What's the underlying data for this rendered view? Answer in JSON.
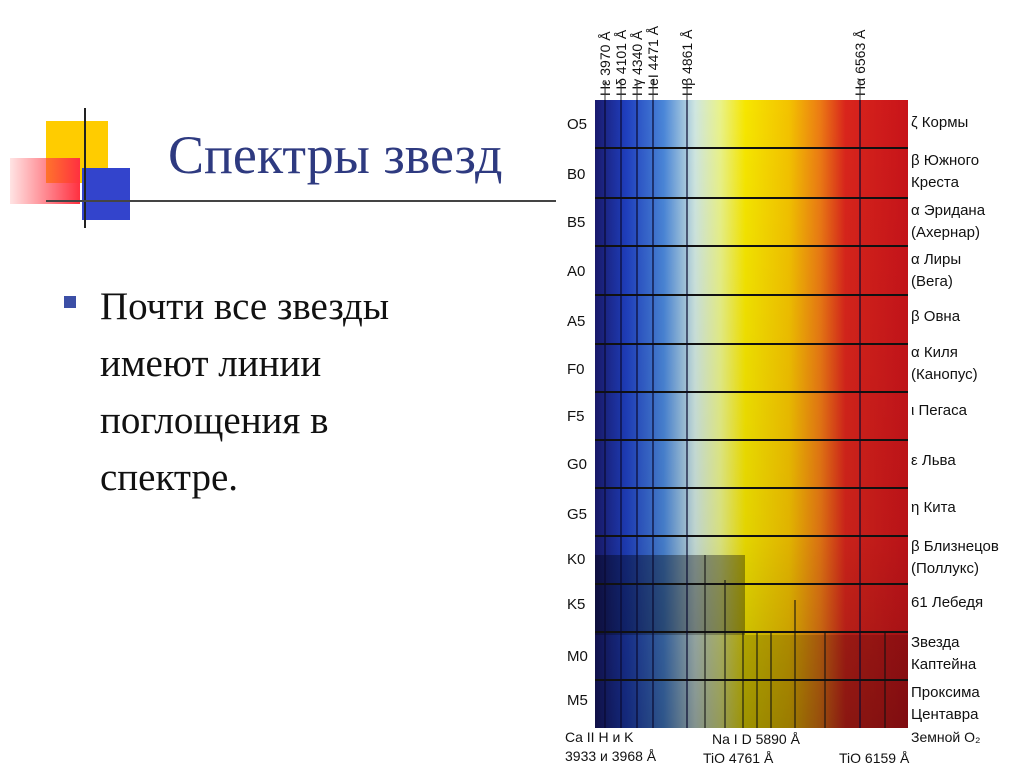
{
  "slide": {
    "title": "Спектры звезд",
    "bullet_lines": [
      "Почти все звезды",
      "имеют линии",
      "поглощения в",
      "спектре."
    ]
  },
  "spectrum": {
    "top_lines": [
      "Hε 3970 Å",
      "Hδ 4101 Å",
      "Hγ 4340 Å",
      "HeI 4471 Å",
      "Hβ 4861 Å",
      "Hα 6563 Å"
    ],
    "rows": [
      {
        "cls": "O5",
        "star": [
          "ζ Кормы"
        ]
      },
      {
        "cls": "B0",
        "star": [
          "β Южного",
          "Креста"
        ]
      },
      {
        "cls": "B5",
        "star": [
          "α Эридана",
          "(Ахернар)"
        ]
      },
      {
        "cls": "A0",
        "star": [
          "α Лиры",
          "(Вега)"
        ]
      },
      {
        "cls": "A5",
        "star": [
          "β Овна"
        ]
      },
      {
        "cls": "F0",
        "star": [
          "α Киля",
          "(Канопус)"
        ]
      },
      {
        "cls": "F5",
        "star": [
          "ι Пегаса"
        ]
      },
      {
        "cls": "G0",
        "star": [
          "ε Льва"
        ]
      },
      {
        "cls": "G5",
        "star": [
          "η Кита"
        ]
      },
      {
        "cls": "K0",
        "star": [
          "β Близнецов",
          "(Поллукс)"
        ]
      },
      {
        "cls": "K5",
        "star": [
          "61 Лебедя"
        ]
      },
      {
        "cls": "M0",
        "star": [
          "Звезда",
          "Каптейна"
        ]
      },
      {
        "cls": "M5",
        "star": [
          "Проксима",
          "Центавра"
        ]
      }
    ],
    "bottom": {
      "ca": "Ca II H и K",
      "ca_wl": "3933 и 3968 Å",
      "na": "Na I D 5890 Å",
      "tio1": "TiO 4761 Å",
      "tio2": "TiO 6159 Å",
      "earth": "Земной O₂"
    }
  }
}
